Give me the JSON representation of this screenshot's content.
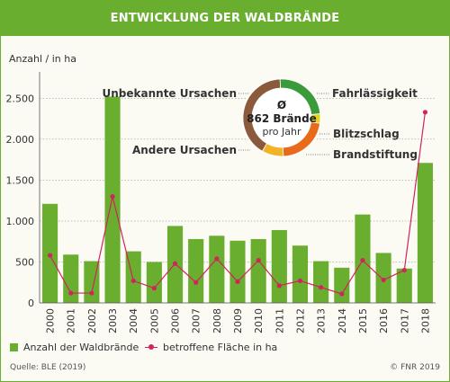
{
  "header": {
    "title": "ENTWICKLUNG DER WALDBRÄNDE"
  },
  "colors": {
    "brand_green": "#6aae2f",
    "bar": "#6aae2f",
    "line": "#d0245f",
    "donut_unbekannt": "#8b5a3c",
    "donut_fahrlaessig": "#3a9b3a",
    "donut_blitz": "#e6d21e",
    "donut_brandstiftung": "#e86a1a",
    "donut_andere": "#f3b328"
  },
  "chart_data": {
    "type": "bar",
    "ylabel": "Anzahl / in ha",
    "ylim": [
      0,
      2800
    ],
    "yticks": [
      0,
      500,
      1000,
      1500,
      2000,
      2500
    ],
    "ytick_labels": [
      "0",
      "500",
      "1.000",
      "1.500",
      "2.000",
      "2.500"
    ],
    "grid": true,
    "categories": [
      "2000",
      "2001",
      "2002",
      "2003",
      "2004",
      "2005",
      "2006",
      "2007",
      "2008",
      "2009",
      "2010",
      "2011",
      "2012",
      "2013",
      "2014",
      "2015",
      "2016",
      "2017",
      "2018"
    ],
    "series": [
      {
        "name": "Anzahl der Waldbrände",
        "type": "bar",
        "values": [
          1210,
          590,
          510,
          2520,
          630,
          500,
          940,
          780,
          820,
          760,
          780,
          890,
          700,
          510,
          430,
          1080,
          610,
          420,
          1710
        ]
      },
      {
        "name": "betroffene Fläche in ha",
        "type": "line",
        "values": [
          580,
          120,
          120,
          1300,
          270,
          180,
          480,
          250,
          540,
          260,
          520,
          210,
          270,
          190,
          110,
          520,
          280,
          400,
          2330
        ]
      }
    ],
    "legend_position": "bottom"
  },
  "donut": {
    "symbol": "Ø",
    "value_label": "862 Brände",
    "sub_label": "pro Jahr",
    "segments": [
      {
        "name": "Unbekannte Ursachen",
        "value": 41
      },
      {
        "name": "Fahrlässigkeit",
        "value": 24
      },
      {
        "name": "Blitzschlag",
        "value": 4
      },
      {
        "name": "Brandstiftung",
        "value": 22
      },
      {
        "name": "Andere Ursachen",
        "value": 9
      }
    ]
  },
  "footer": {
    "source": "Quelle: BLE (2019)",
    "copyright": "© FNR 2019"
  }
}
